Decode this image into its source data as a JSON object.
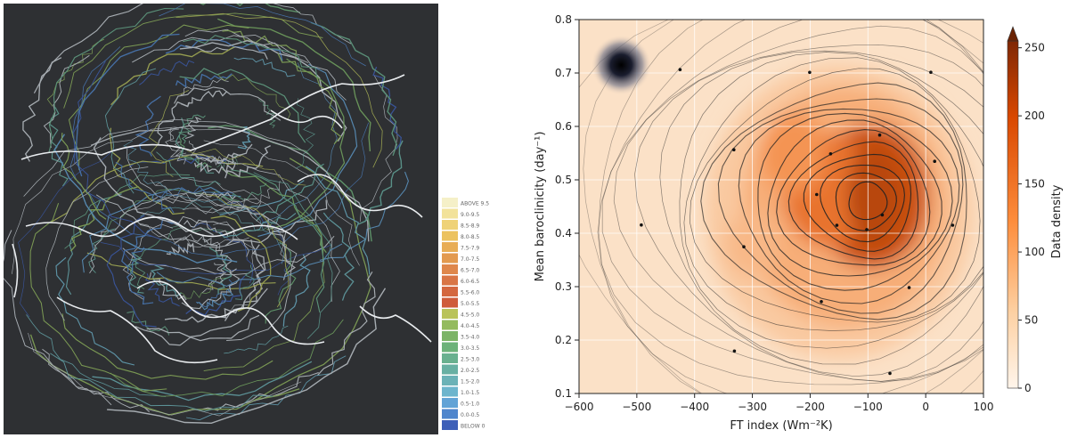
{
  "map": {
    "legend": {
      "labels": [
        "ABOVE 9.5",
        "9.0-9.5",
        "8.5-8.9",
        "8.0-8.5",
        "7.5-7.9",
        "7.0-7.5",
        "6.5-7.0",
        "6.0-6.5",
        "5.5-6.0",
        "5.0-5.5",
        "4.5-5.0",
        "4.0-4.5",
        "3.5-4.0",
        "3.0-3.5",
        "2.5-3.0",
        "2.0-2.5",
        "1.5-2.0",
        "1.0-1.5",
        "0.5-1.0",
        "0.0-0.5",
        "BELOW 0"
      ],
      "colors": [
        "#f5f0c8",
        "#f2e29a",
        "#efd277",
        "#ecc25f",
        "#e8ad55",
        "#e39a4f",
        "#df874b",
        "#d97545",
        "#d4673f",
        "#cf5c3b",
        "#b9c35a",
        "#94bb5e",
        "#7cb466",
        "#6db27a",
        "#69b08f",
        "#68b0a3",
        "#6bb2b7",
        "#6db5cd",
        "#62a3d6",
        "#4f86cd",
        "#3d5fb8"
      ]
    }
  },
  "chart_data": {
    "type": "heatmap",
    "xlabel": "FT index (Wm⁻²K)",
    "ylabel": "Mean baroclinicity (day⁻¹)",
    "xlim": [
      -600,
      100
    ],
    "ylim": [
      0.1,
      0.8
    ],
    "xticks": [
      -600,
      -500,
      -400,
      -300,
      -200,
      -100,
      0,
      100
    ],
    "xtick_labels": [
      "−600",
      "−500",
      "−400",
      "−300",
      "−200",
      "−100",
      "0",
      "100"
    ],
    "yticks": [
      0.1,
      0.2,
      0.3,
      0.4,
      0.5,
      0.6,
      0.7,
      0.8
    ],
    "ytick_labels": [
      "0.1",
      "0.2",
      "0.3",
      "0.4",
      "0.5",
      "0.6",
      "0.7",
      "0.8"
    ],
    "grid": true,
    "colorbar": {
      "label": "Data density",
      "ticks": [
        0,
        50,
        100,
        150,
        200,
        250
      ],
      "tick_labels": [
        "0",
        "50",
        "100",
        "150",
        "200",
        "250"
      ],
      "extend": "max",
      "colors": [
        "#fff5eb",
        "#fdd0a2",
        "#fd8d3c",
        "#d94801",
        "#7f2704"
      ]
    },
    "density_peaks": [
      {
        "x": -95,
        "y": 0.47,
        "value": 240
      },
      {
        "x": -170,
        "y": 0.48,
        "value": 160
      },
      {
        "x": -230,
        "y": 0.55,
        "value": 80
      },
      {
        "x": -300,
        "y": 0.38,
        "value": 40
      }
    ],
    "streamline_center": {
      "x": -95,
      "y": 0.46
    },
    "marker": {
      "x": -527,
      "y": 0.715
    }
  }
}
